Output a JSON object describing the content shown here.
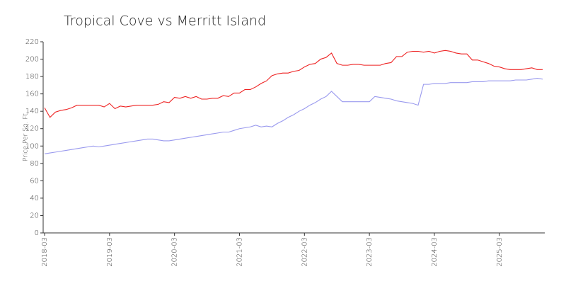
{
  "chart_data": {
    "type": "line",
    "title": "Tropical Cove vs Merritt Island",
    "y_label": "Price Per Sq. Ft",
    "x": [
      "2018-03",
      "2018-04",
      "2018-05",
      "2018-06",
      "2018-07",
      "2018-08",
      "2018-09",
      "2018-10",
      "2018-11",
      "2018-12",
      "2019-01",
      "2019-02",
      "2019-03",
      "2019-04",
      "2019-05",
      "2019-06",
      "2019-07",
      "2019-08",
      "2019-09",
      "2019-10",
      "2019-11",
      "2019-12",
      "2020-01",
      "2020-02",
      "2020-03",
      "2020-04",
      "2020-05",
      "2020-06",
      "2020-07",
      "2020-08",
      "2020-09",
      "2020-10",
      "2020-11",
      "2020-12",
      "2021-01",
      "2021-02",
      "2021-03",
      "2021-04",
      "2021-05",
      "2021-06",
      "2021-07",
      "2021-08",
      "2021-09",
      "2021-10",
      "2021-11",
      "2021-12",
      "2022-01",
      "2022-02",
      "2022-03",
      "2022-04",
      "2022-05",
      "2022-06",
      "2022-07",
      "2022-08",
      "2022-09",
      "2022-10",
      "2022-11",
      "2022-12",
      "2023-01",
      "2023-02",
      "2023-03",
      "2023-04",
      "2023-05",
      "2023-06",
      "2023-07",
      "2023-08",
      "2023-09",
      "2023-10",
      "2023-11",
      "2023-12",
      "2024-01",
      "2024-02",
      "2024-03",
      "2024-04",
      "2024-05",
      "2024-06",
      "2024-07",
      "2024-08",
      "2024-09",
      "2024-10",
      "2024-11",
      "2024-12",
      "2025-01",
      "2025-02",
      "2025-03",
      "2025-04",
      "2025-05",
      "2025-06",
      "2025-07",
      "2025-08",
      "2025-09",
      "2025-10",
      "2025-11"
    ],
    "series": [
      {
        "color": "#ee2222",
        "values": [
          144,
          133,
          139,
          141,
          142,
          144,
          147,
          147,
          147,
          147,
          147,
          145,
          149,
          143,
          146,
          145,
          146,
          147,
          147,
          147,
          147,
          148,
          151,
          150,
          156,
          155,
          157,
          155,
          157,
          154,
          154,
          155,
          155,
          158,
          157,
          161,
          161,
          165,
          165,
          168,
          172,
          175,
          181,
          183,
          184,
          184,
          186,
          187,
          191,
          194,
          195,
          200,
          202,
          207,
          195,
          193,
          193,
          194,
          194,
          193,
          193,
          193,
          193,
          195,
          196,
          203,
          203,
          208,
          209,
          209,
          208,
          209,
          207,
          209,
          210,
          209,
          207,
          206,
          206,
          199,
          199,
          197,
          195,
          192,
          191,
          189,
          188,
          188,
          188,
          189,
          190,
          188,
          188
        ]
      },
      {
        "color": "#9999ee",
        "values": [
          91,
          92,
          93,
          94,
          95,
          96,
          97,
          98,
          99,
          100,
          99,
          100,
          101,
          102,
          103,
          104,
          105,
          106,
          107,
          108,
          108,
          107,
          106,
          106,
          107,
          108,
          109,
          110,
          111,
          112,
          113,
          114,
          115,
          116,
          116,
          118,
          120,
          121,
          122,
          124,
          122,
          123,
          122,
          126,
          129,
          133,
          136,
          140,
          143,
          147,
          150,
          154,
          157,
          163,
          157,
          151,
          151,
          151,
          151,
          151,
          151,
          157,
          156,
          155,
          154,
          152,
          151,
          150,
          149,
          147,
          171,
          171,
          172,
          172,
          172,
          173,
          173,
          173,
          173,
          174,
          174,
          174,
          175,
          175,
          175,
          175,
          175,
          176,
          176,
          176,
          177,
          178,
          177
        ]
      }
    ],
    "xticks": [
      "2018-03",
      "2019-03",
      "2020-03",
      "2021-03",
      "2022-03",
      "2023-03",
      "2024-03",
      "2025-03"
    ],
    "ylim": [
      0,
      220
    ],
    "yticks": [
      0,
      20,
      40,
      60,
      80,
      100,
      120,
      140,
      160,
      180,
      200,
      220
    ],
    "grid": false
  }
}
